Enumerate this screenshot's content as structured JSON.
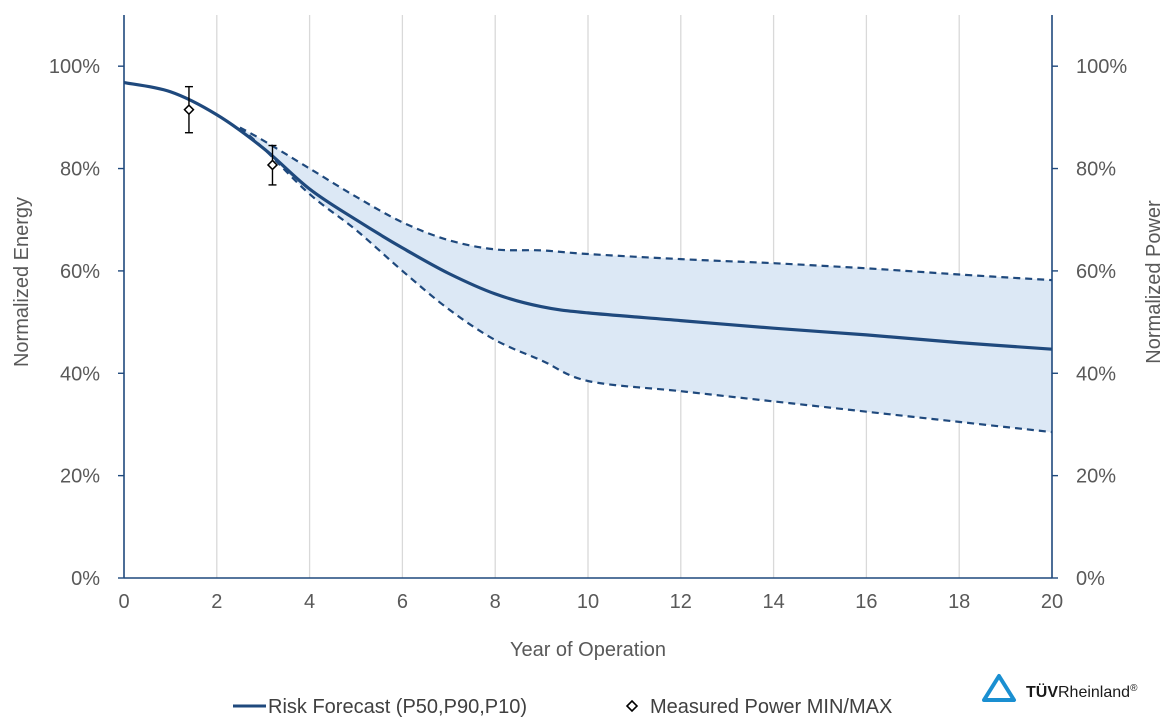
{
  "chart_data": {
    "type": "line",
    "xlabel": "Year of Operation",
    "ylabel_left": "Normalized Energy",
    "ylabel_right": "Normalized Power",
    "xlim": [
      0,
      20
    ],
    "ylim": [
      0,
      110
    ],
    "x_ticks": [
      0,
      2,
      4,
      6,
      8,
      10,
      12,
      14,
      16,
      18,
      20
    ],
    "x_tick_labels": [
      "0",
      "2",
      "4",
      "6",
      "8",
      "10",
      "12",
      "14",
      "16",
      "18",
      "20"
    ],
    "y_ticks": [
      0,
      20,
      40,
      60,
      80,
      100
    ],
    "y_tick_labels": [
      "0%",
      "20%",
      "40%",
      "60%",
      "80%",
      "100%"
    ],
    "grid": "vertical",
    "legend_position": "bottom",
    "series": [
      {
        "name": "Risk Forecast (P50,P90,P10)",
        "role": "P50",
        "style": "solid",
        "x": [
          0,
          1,
          2,
          3,
          4,
          5,
          6,
          7,
          8,
          9,
          10,
          12,
          14,
          16,
          18,
          20
        ],
        "y": [
          96.8,
          95,
          90.5,
          84,
          76,
          70,
          64.5,
          59.5,
          55.5,
          53,
          51.8,
          50.3,
          48.8,
          47.5,
          46,
          44.7
        ]
      },
      {
        "role": "P10",
        "style": "dashed",
        "x": [
          2.5,
          3,
          4,
          5,
          6,
          7,
          8,
          9,
          10,
          12,
          14,
          16,
          18,
          20
        ],
        "y": [
          88,
          85.5,
          80,
          74.5,
          69.5,
          66,
          64.2,
          64,
          63.3,
          62.3,
          61.5,
          60.5,
          59.3,
          58.2
        ]
      },
      {
        "role": "P90",
        "style": "dashed",
        "x": [
          2.5,
          3,
          4,
          5,
          6,
          7,
          8,
          9,
          10,
          12,
          14,
          16,
          18,
          20
        ],
        "y": [
          88,
          84,
          75,
          68,
          60,
          52.5,
          46.5,
          42.5,
          38.5,
          36.5,
          34.5,
          32.5,
          30.5,
          28.5
        ]
      },
      {
        "name": "Measured Power MIN/MAX",
        "type": "scatter",
        "points": [
          {
            "x": 1.4,
            "y": 91.5,
            "min": 87,
            "max": 96
          },
          {
            "x": 3.2,
            "y": 80.7,
            "min": 76.8,
            "max": 84.5
          }
        ]
      }
    ],
    "colors": {
      "line": "#1f497d",
      "band": "#dce8f5",
      "grid": "#d9d9d9",
      "marker": "#000000",
      "logo": "#1a8fd1"
    }
  },
  "logo": {
    "text_bold": "TÜV",
    "text_regular": "Rheinland",
    "mark": "®"
  }
}
